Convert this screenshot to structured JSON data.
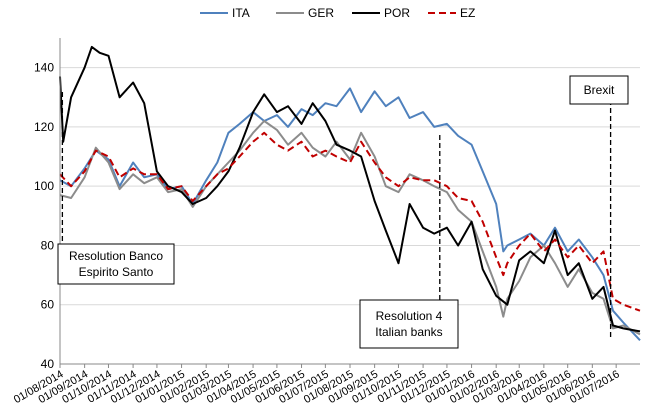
{
  "chart_data": {
    "type": "line",
    "title": "",
    "xlabel": "",
    "ylabel": "",
    "ylim": [
      40,
      150
    ],
    "yticks": [
      40,
      60,
      80,
      100,
      120,
      140
    ],
    "grid": "horizontal",
    "legend_position": "top",
    "x_range": [
      "2014-08-01",
      "2016-07-31"
    ],
    "x_tick_labels": [
      "01/08/2014",
      "01/09/2014",
      "01/10/2014",
      "01/11/2014",
      "01/12/2014",
      "01/01/2015",
      "01/02/2015",
      "01/03/2015",
      "01/04/2015",
      "01/05/2015",
      "01/06/2015",
      "01/07/2015",
      "01/08/2015",
      "01/09/2015",
      "01/10/2015",
      "01/11/2015",
      "01/12/2015",
      "01/01/2016",
      "01/02/2016",
      "01/03/2016",
      "01/04/2016",
      "01/05/2016",
      "01/06/2016",
      "01/07/2016"
    ],
    "series": [
      {
        "name": "ITA",
        "color": "#4f81bd",
        "dash": "solid",
        "points": [
          [
            "2014-08-01",
            102
          ],
          [
            "2014-08-15",
            100
          ],
          [
            "2014-09-01",
            106
          ],
          [
            "2014-09-15",
            112
          ],
          [
            "2014-10-01",
            109
          ],
          [
            "2014-10-15",
            100
          ],
          [
            "2014-11-01",
            108
          ],
          [
            "2014-11-15",
            103
          ],
          [
            "2014-12-01",
            104
          ],
          [
            "2014-12-15",
            99
          ],
          [
            "2015-01-01",
            100
          ],
          [
            "2015-01-15",
            94
          ],
          [
            "2015-02-01",
            102
          ],
          [
            "2015-02-15",
            108
          ],
          [
            "2015-03-01",
            118
          ],
          [
            "2015-03-15",
            121
          ],
          [
            "2015-04-01",
            125
          ],
          [
            "2015-04-15",
            122
          ],
          [
            "2015-05-01",
            124
          ],
          [
            "2015-05-15",
            120
          ],
          [
            "2015-06-01",
            126
          ],
          [
            "2015-06-15",
            124
          ],
          [
            "2015-07-01",
            128
          ],
          [
            "2015-07-15",
            127
          ],
          [
            "2015-08-01",
            133
          ],
          [
            "2015-08-15",
            125
          ],
          [
            "2015-09-01",
            132
          ],
          [
            "2015-09-15",
            127
          ],
          [
            "2015-10-01",
            130
          ],
          [
            "2015-10-15",
            123
          ],
          [
            "2015-11-01",
            125
          ],
          [
            "2015-11-15",
            120
          ],
          [
            "2015-12-01",
            121
          ],
          [
            "2015-12-15",
            117
          ],
          [
            "2016-01-01",
            114
          ],
          [
            "2016-01-15",
            105
          ],
          [
            "2016-02-01",
            94
          ],
          [
            "2016-02-10",
            78
          ],
          [
            "2016-02-15",
            80
          ],
          [
            "2016-03-01",
            82
          ],
          [
            "2016-03-15",
            84
          ],
          [
            "2016-04-01",
            80
          ],
          [
            "2016-04-15",
            86
          ],
          [
            "2016-05-01",
            78
          ],
          [
            "2016-05-15",
            82
          ],
          [
            "2016-06-01",
            76
          ],
          [
            "2016-06-15",
            70
          ],
          [
            "2016-06-27",
            58
          ],
          [
            "2016-07-10",
            54
          ],
          [
            "2016-07-31",
            48
          ]
        ]
      },
      {
        "name": "GER",
        "color": "#8c8c8c",
        "dash": "solid",
        "points": [
          [
            "2014-08-01",
            97
          ],
          [
            "2014-08-15",
            96
          ],
          [
            "2014-09-01",
            103
          ],
          [
            "2014-09-15",
            113
          ],
          [
            "2014-10-01",
            108
          ],
          [
            "2014-10-15",
            99
          ],
          [
            "2014-11-01",
            104
          ],
          [
            "2014-11-15",
            101
          ],
          [
            "2014-12-01",
            103
          ],
          [
            "2014-12-15",
            98
          ],
          [
            "2015-01-01",
            99
          ],
          [
            "2015-01-15",
            93
          ],
          [
            "2015-02-01",
            100
          ],
          [
            "2015-02-15",
            104
          ],
          [
            "2015-03-01",
            108
          ],
          [
            "2015-03-15",
            112
          ],
          [
            "2015-04-01",
            118
          ],
          [
            "2015-04-15",
            122
          ],
          [
            "2015-05-01",
            119
          ],
          [
            "2015-05-15",
            114
          ],
          [
            "2015-06-01",
            118
          ],
          [
            "2015-06-15",
            113
          ],
          [
            "2015-07-01",
            110
          ],
          [
            "2015-07-15",
            115
          ],
          [
            "2015-08-01",
            109
          ],
          [
            "2015-08-15",
            118
          ],
          [
            "2015-09-01",
            110
          ],
          [
            "2015-09-15",
            100
          ],
          [
            "2015-10-01",
            98
          ],
          [
            "2015-10-15",
            104
          ],
          [
            "2015-11-01",
            102
          ],
          [
            "2015-11-15",
            100
          ],
          [
            "2015-12-01",
            98
          ],
          [
            "2015-12-15",
            92
          ],
          [
            "2016-01-01",
            88
          ],
          [
            "2016-01-15",
            78
          ],
          [
            "2016-02-01",
            66
          ],
          [
            "2016-02-10",
            56
          ],
          [
            "2016-02-15",
            62
          ],
          [
            "2016-03-01",
            68
          ],
          [
            "2016-03-15",
            76
          ],
          [
            "2016-04-01",
            80
          ],
          [
            "2016-04-15",
            74
          ],
          [
            "2016-05-01",
            66
          ],
          [
            "2016-05-15",
            72
          ],
          [
            "2016-06-01",
            64
          ],
          [
            "2016-06-15",
            62
          ],
          [
            "2016-06-27",
            52
          ],
          [
            "2016-07-10",
            53
          ],
          [
            "2016-07-31",
            50
          ]
        ]
      },
      {
        "name": "POR",
        "color": "#000000",
        "dash": "solid",
        "points": [
          [
            "2014-08-01",
            137
          ],
          [
            "2014-08-05",
            115
          ],
          [
            "2014-08-15",
            130
          ],
          [
            "2014-09-01",
            140
          ],
          [
            "2014-09-10",
            147
          ],
          [
            "2014-09-20",
            145
          ],
          [
            "2014-10-01",
            144
          ],
          [
            "2014-10-15",
            130
          ],
          [
            "2014-11-01",
            135
          ],
          [
            "2014-11-15",
            128
          ],
          [
            "2014-12-01",
            105
          ],
          [
            "2014-12-15",
            100
          ],
          [
            "2015-01-01",
            98
          ],
          [
            "2015-01-15",
            94
          ],
          [
            "2015-02-01",
            96
          ],
          [
            "2015-02-15",
            100
          ],
          [
            "2015-03-01",
            105
          ],
          [
            "2015-03-15",
            113
          ],
          [
            "2015-04-01",
            125
          ],
          [
            "2015-04-15",
            131
          ],
          [
            "2015-05-01",
            125
          ],
          [
            "2015-05-15",
            127
          ],
          [
            "2015-06-01",
            121
          ],
          [
            "2015-06-15",
            128
          ],
          [
            "2015-07-01",
            122
          ],
          [
            "2015-07-15",
            114
          ],
          [
            "2015-08-01",
            112
          ],
          [
            "2015-08-15",
            110
          ],
          [
            "2015-09-01",
            95
          ],
          [
            "2015-09-15",
            85
          ],
          [
            "2015-10-01",
            74
          ],
          [
            "2015-10-15",
            94
          ],
          [
            "2015-11-01",
            86
          ],
          [
            "2015-11-15",
            84
          ],
          [
            "2015-12-01",
            86
          ],
          [
            "2015-12-15",
            80
          ],
          [
            "2016-01-01",
            88
          ],
          [
            "2016-01-15",
            72
          ],
          [
            "2016-02-01",
            63
          ],
          [
            "2016-02-15",
            60
          ],
          [
            "2016-03-01",
            75
          ],
          [
            "2016-03-15",
            78
          ],
          [
            "2016-04-01",
            74
          ],
          [
            "2016-04-15",
            85
          ],
          [
            "2016-05-01",
            70
          ],
          [
            "2016-05-15",
            74
          ],
          [
            "2016-06-01",
            62
          ],
          [
            "2016-06-15",
            66
          ],
          [
            "2016-06-27",
            53
          ],
          [
            "2016-07-10",
            52
          ],
          [
            "2016-07-31",
            51
          ]
        ]
      },
      {
        "name": "EZ",
        "color": "#c00000",
        "dash": "dashed",
        "points": [
          [
            "2014-08-01",
            104
          ],
          [
            "2014-08-15",
            100
          ],
          [
            "2014-09-01",
            105
          ],
          [
            "2014-09-15",
            112
          ],
          [
            "2014-10-01",
            110
          ],
          [
            "2014-10-15",
            103
          ],
          [
            "2014-11-01",
            106
          ],
          [
            "2014-11-15",
            104
          ],
          [
            "2014-12-01",
            104
          ],
          [
            "2014-12-15",
            99
          ],
          [
            "2015-01-01",
            100
          ],
          [
            "2015-01-15",
            95
          ],
          [
            "2015-02-01",
            100
          ],
          [
            "2015-02-15",
            104
          ],
          [
            "2015-03-01",
            106
          ],
          [
            "2015-03-15",
            110
          ],
          [
            "2015-04-01",
            115
          ],
          [
            "2015-04-15",
            118
          ],
          [
            "2015-05-01",
            114
          ],
          [
            "2015-05-15",
            112
          ],
          [
            "2015-06-01",
            115
          ],
          [
            "2015-06-15",
            110
          ],
          [
            "2015-07-01",
            112
          ],
          [
            "2015-07-15",
            110
          ],
          [
            "2015-08-01",
            108
          ],
          [
            "2015-08-15",
            115
          ],
          [
            "2015-09-01",
            108
          ],
          [
            "2015-09-15",
            103
          ],
          [
            "2015-10-01",
            100
          ],
          [
            "2015-10-15",
            103
          ],
          [
            "2015-11-01",
            102
          ],
          [
            "2015-11-15",
            102
          ],
          [
            "2015-12-01",
            100
          ],
          [
            "2015-12-15",
            96
          ],
          [
            "2016-01-01",
            95
          ],
          [
            "2016-01-15",
            88
          ],
          [
            "2016-02-01",
            76
          ],
          [
            "2016-02-10",
            70
          ],
          [
            "2016-02-15",
            74
          ],
          [
            "2016-03-01",
            80
          ],
          [
            "2016-03-15",
            84
          ],
          [
            "2016-04-01",
            78
          ],
          [
            "2016-04-15",
            82
          ],
          [
            "2016-05-01",
            76
          ],
          [
            "2016-05-15",
            80
          ],
          [
            "2016-06-01",
            74
          ],
          [
            "2016-06-15",
            78
          ],
          [
            "2016-06-27",
            62
          ],
          [
            "2016-07-10",
            60
          ],
          [
            "2016-07-31",
            58
          ]
        ]
      }
    ],
    "annotations": [
      {
        "lines": [
          "Resolution Banco",
          "Espirito Santo"
        ],
        "date": "2014-08-04"
      },
      {
        "lines": [
          "Resolution 4",
          "Italian banks"
        ],
        "date": "2015-11-22"
      },
      {
        "lines": [
          "Brexit"
        ],
        "date": "2016-06-24"
      }
    ]
  }
}
